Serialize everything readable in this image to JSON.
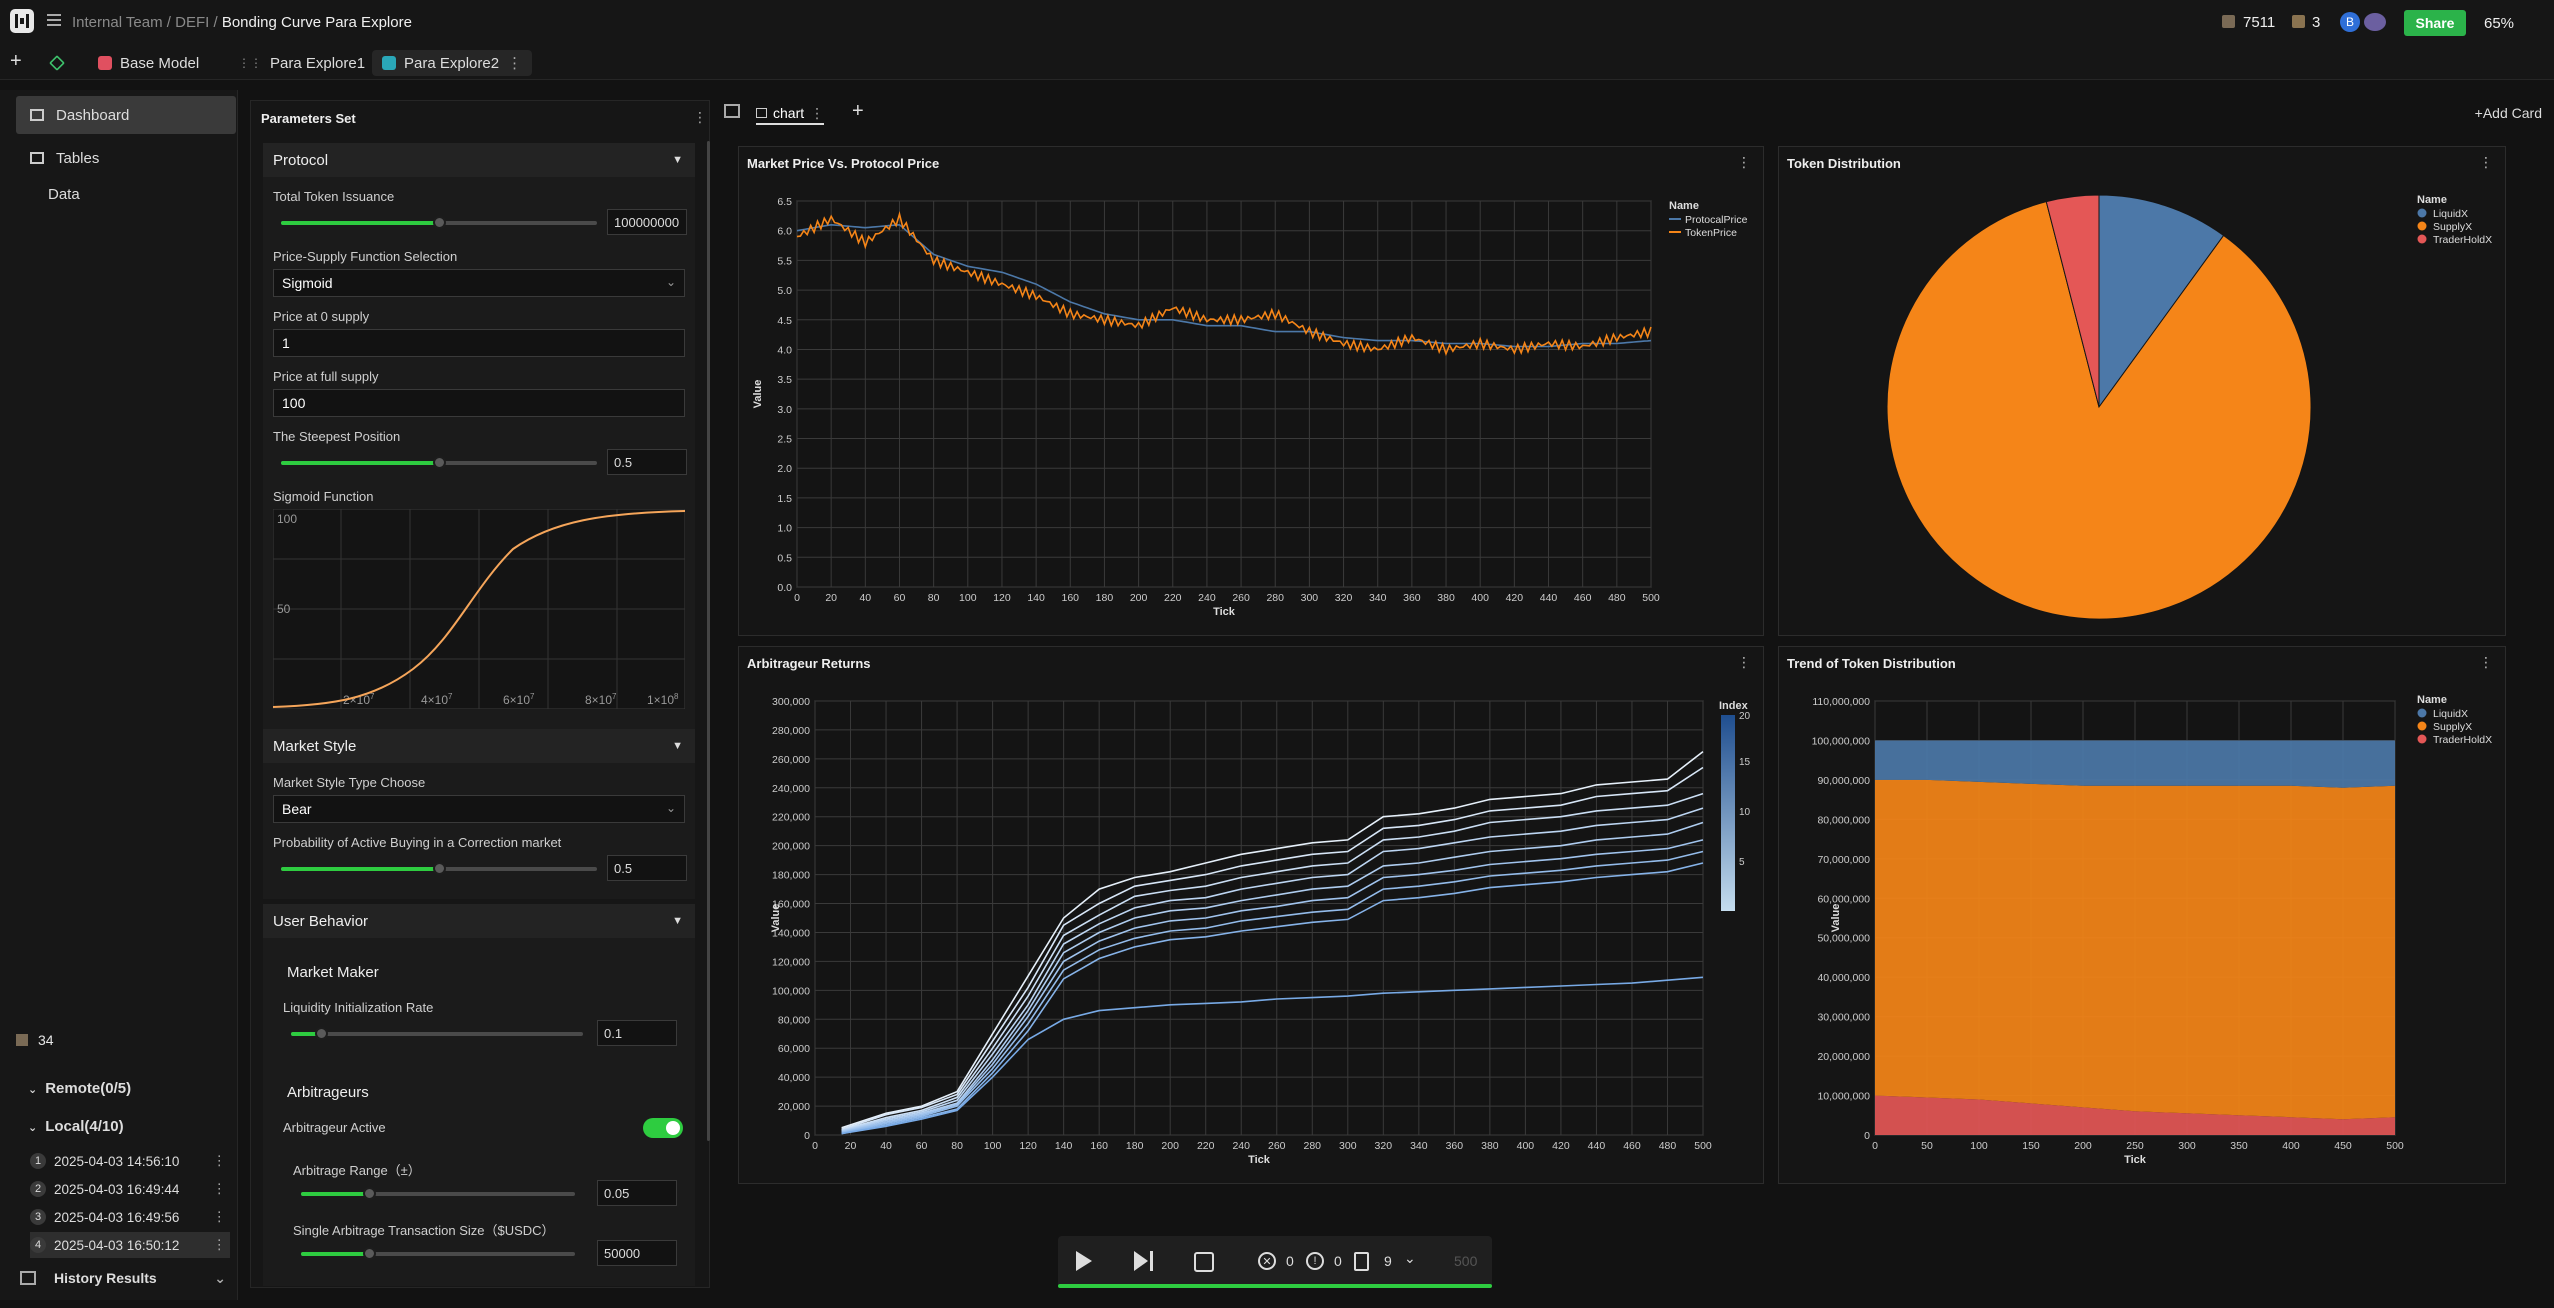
{
  "topbar": {
    "breadcrumb_team": "Internal Team",
    "breadcrumb_sep": "/",
    "breadcrumb_section": "DEFI",
    "page_title": "Bonding Curve Para Explore",
    "coins": "7511",
    "boxes": "3",
    "avatar_letter": "B",
    "share_label": "Share",
    "zoom": "65%"
  },
  "tabs": [
    {
      "label": "Base Model"
    },
    {
      "label": "Para Explore1"
    },
    {
      "label": "Para Explore2"
    }
  ],
  "sidebar": {
    "items": [
      {
        "label": "Dashboard"
      },
      {
        "label": "Tables"
      },
      {
        "label": "Data"
      }
    ],
    "count": "34",
    "remote": "Remote(0/5)",
    "local": "Local(4/10)",
    "history": [
      {
        "num": "1",
        "time": "2025-04-03 14:56:10"
      },
      {
        "num": "2",
        "time": "2025-04-03 16:49:44"
      },
      {
        "num": "3",
        "time": "2025-04-03 16:49:56"
      },
      {
        "num": "4",
        "time": "2025-04-03 16:50:12"
      }
    ],
    "history_results": "History Results"
  },
  "params": {
    "title": "Parameters Set",
    "protocol": {
      "header": "Protocol",
      "issuance_label": "Total Token Issuance",
      "issuance_value": "100000000",
      "issuance_level": 0.5,
      "func_label": "Price-Supply Function Selection",
      "func_value": "Sigmoid",
      "p0_label": "Price at 0 supply",
      "p0_value": "1",
      "pfull_label": "Price at full supply",
      "pfull_value": "100",
      "steep_label": "The Steepest Position",
      "steep_value": "0.5",
      "steep_level": 0.5,
      "sigmoid_label": "Sigmoid Function",
      "sig_y100": "100",
      "sig_y50": "50"
    },
    "market": {
      "header": "Market Style",
      "type_label": "Market Style Type Choose",
      "type_value": "Bear",
      "prob_label": "Probability of Active Buying in a Correction market",
      "prob_value": "0.5",
      "prob_level": 0.5
    },
    "user": {
      "header": "User Behavior",
      "mm_title": "Market Maker",
      "liq_label": "Liquidity Initialization Rate",
      "liq_value": "0.1",
      "liq_level": 0.1,
      "arb_title": "Arbitrageurs",
      "arb_active_label": "Arbitrageur Active",
      "arb_active": true,
      "range_label": "Arbitrage Range（±）",
      "range_value": "0.05",
      "range_level": 0.25,
      "size_label": "Single Arbitrage Transaction Size（$USDC）",
      "size_value": "50000",
      "size_level": 0.25
    }
  },
  "content": {
    "tab_label": "chart",
    "add_card": "+Add Card"
  },
  "player": {
    "errors": "0",
    "warnings": "0",
    "pages": "9",
    "steps": "500"
  },
  "chart_data": [
    {
      "type": "line",
      "title": "Market Price Vs. Protocol Price",
      "xlabel": "Tick",
      "ylabel": "Value",
      "xlim": [
        0,
        500
      ],
      "ylim": [
        0,
        6.5
      ],
      "legend_title": "Name",
      "series": [
        {
          "name": "ProtocalPrice",
          "color": "#4c78a8",
          "x": [
            0,
            20,
            40,
            60,
            80,
            100,
            120,
            140,
            160,
            180,
            200,
            220,
            240,
            260,
            280,
            300,
            320,
            340,
            360,
            380,
            400,
            420,
            440,
            460,
            480,
            500
          ],
          "values": [
            6.0,
            6.1,
            6.05,
            6.1,
            5.6,
            5.4,
            5.3,
            5.1,
            4.8,
            4.6,
            4.5,
            4.5,
            4.4,
            4.4,
            4.3,
            4.3,
            4.2,
            4.15,
            4.15,
            4.1,
            4.1,
            4.05,
            4.05,
            4.1,
            4.1,
            4.15
          ]
        },
        {
          "name": "TokenPrice",
          "color": "#f58518",
          "x": [
            0,
            20,
            40,
            60,
            80,
            100,
            120,
            140,
            160,
            180,
            200,
            220,
            240,
            260,
            280,
            300,
            320,
            340,
            360,
            380,
            400,
            420,
            440,
            460,
            480,
            500
          ],
          "values": [
            5.9,
            6.2,
            5.8,
            6.2,
            5.5,
            5.3,
            5.1,
            4.9,
            4.6,
            4.5,
            4.4,
            4.7,
            4.5,
            4.5,
            4.6,
            4.3,
            4.1,
            4.0,
            4.2,
            4.0,
            4.1,
            4.0,
            4.1,
            4.05,
            4.2,
            4.3
          ]
        }
      ]
    },
    {
      "type": "pie",
      "title": "Token Distribution",
      "legend_title": "Name",
      "slices": [
        {
          "name": "LiquidX",
          "value": 10,
          "color": "#4c78a8"
        },
        {
          "name": "SupplyX",
          "value": 86,
          "color": "#f58518"
        },
        {
          "name": "TraderHoldX",
          "value": 4,
          "color": "#e45756"
        }
      ]
    },
    {
      "type": "line",
      "title": "Arbitrageur Returns",
      "xlabel": "Tick",
      "ylabel": "Value",
      "xlim": [
        0,
        500
      ],
      "ylim": [
        0,
        300000
      ],
      "legend_title": "Index",
      "color_scale": [
        1,
        20
      ],
      "x": [
        15,
        40,
        60,
        80,
        100,
        120,
        140,
        160,
        180,
        200,
        220,
        240,
        260,
        280,
        300,
        320,
        340,
        360,
        380,
        400,
        420,
        440,
        460,
        480,
        500
      ],
      "series": [
        {
          "values": [
            5000,
            15000,
            20000,
            30000,
            70000,
            110000,
            150000,
            170000,
            178000,
            182000,
            188000,
            194000,
            198000,
            202000,
            204000,
            220000,
            222000,
            226000,
            232000,
            234000,
            236000,
            242000,
            244000,
            246000,
            265000
          ]
        },
        {
          "values": [
            4000,
            14000,
            19000,
            28000,
            65000,
            102000,
            145000,
            160000,
            172000,
            176000,
            180000,
            186000,
            190000,
            194000,
            196000,
            212000,
            214000,
            218000,
            224000,
            226000,
            228000,
            234000,
            236000,
            238000,
            254000
          ]
        },
        {
          "values": [
            3500,
            12000,
            17000,
            26000,
            60000,
            96000,
            138000,
            152000,
            165000,
            169000,
            172000,
            178000,
            182000,
            186000,
            188000,
            204000,
            206000,
            210000,
            216000,
            218000,
            220000,
            224000,
            226000,
            228000,
            236000
          ]
        },
        {
          "values": [
            3000,
            11000,
            16000,
            24000,
            56000,
            90000,
            132000,
            146000,
            157000,
            162000,
            164000,
            170000,
            174000,
            178000,
            180000,
            196000,
            198000,
            202000,
            206000,
            208000,
            210000,
            214000,
            216000,
            218000,
            226000
          ]
        },
        {
          "values": [
            2500,
            10000,
            15000,
            22000,
            52000,
            86000,
            126000,
            140000,
            150000,
            155000,
            157000,
            162000,
            166000,
            170000,
            172000,
            186000,
            188000,
            192000,
            196000,
            198000,
            200000,
            204000,
            206000,
            208000,
            216000
          ]
        },
        {
          "values": [
            2000,
            9000,
            14000,
            21000,
            49000,
            82000,
            120000,
            134000,
            143000,
            148000,
            150000,
            155000,
            158000,
            162000,
            164000,
            178000,
            180000,
            183000,
            187000,
            189000,
            191000,
            194000,
            196000,
            198000,
            204000
          ]
        },
        {
          "values": [
            1500,
            8000,
            13000,
            20000,
            46000,
            77000,
            114000,
            128000,
            136000,
            141000,
            143000,
            148000,
            151000,
            154000,
            156000,
            170000,
            172000,
            175000,
            179000,
            181000,
            183000,
            186000,
            188000,
            190000,
            196000
          ]
        },
        {
          "values": [
            1000,
            7000,
            12000,
            18000,
            43000,
            72000,
            108000,
            122000,
            130000,
            135000,
            137000,
            141000,
            144000,
            147000,
            149000,
            162000,
            164000,
            167000,
            171000,
            173000,
            175000,
            178000,
            180000,
            182000,
            188000
          ]
        },
        {
          "values": [
            1000,
            6000,
            11000,
            17000,
            40000,
            66000,
            80000,
            86000,
            88000,
            90000,
            91000,
            92000,
            94000,
            95000,
            96000,
            98000,
            99000,
            100000,
            101000,
            102000,
            103000,
            104000,
            105000,
            107000,
            109000
          ]
        }
      ]
    },
    {
      "type": "area",
      "title": "Trend of Token Distribution",
      "xlabel": "Tick",
      "ylabel": "Value",
      "xlim": [
        0,
        500
      ],
      "ylim": [
        0,
        110000000
      ],
      "legend_title": "Name",
      "x": [
        0,
        50,
        100,
        150,
        200,
        250,
        300,
        350,
        400,
        450,
        500
      ],
      "series": [
        {
          "name": "TraderHoldX",
          "color": "#e45756",
          "values": [
            10000000,
            9500000,
            9000000,
            8000000,
            7000000,
            6000000,
            5500000,
            5000000,
            4500000,
            4000000,
            4500000
          ]
        },
        {
          "name": "SupplyX",
          "color": "#f58518",
          "values": [
            80000000,
            80500000,
            80500000,
            81000000,
            81500000,
            82500000,
            83000000,
            83500000,
            84000000,
            84000000,
            84000000
          ]
        },
        {
          "name": "LiquidX",
          "color": "#4c78a8",
          "values": [
            10000000,
            10000000,
            10500000,
            11000000,
            11500000,
            11500000,
            11500000,
            11500000,
            11500000,
            12000000,
            11500000
          ]
        }
      ]
    }
  ]
}
